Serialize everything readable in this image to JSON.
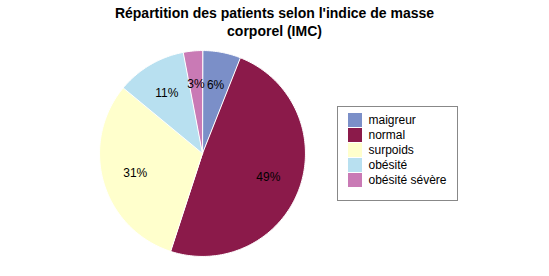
{
  "chart_data": {
    "type": "pie",
    "title": "Répartition des patients selon l'indice de masse\ncorporel (IMC)",
    "categories": [
      "maigreur",
      "normal",
      "surpoids",
      "obésité",
      "obésité sévère"
    ],
    "values": [
      6,
      49,
      31,
      11,
      3
    ],
    "value_labels": [
      "6%",
      "49%",
      "31%",
      "11%",
      "3%"
    ],
    "colors": [
      "#7b8fc8",
      "#8b1a4a",
      "#ffffcc",
      "#b8e0f0",
      "#c97ab5"
    ],
    "data_labels": true,
    "legend": "right"
  }
}
